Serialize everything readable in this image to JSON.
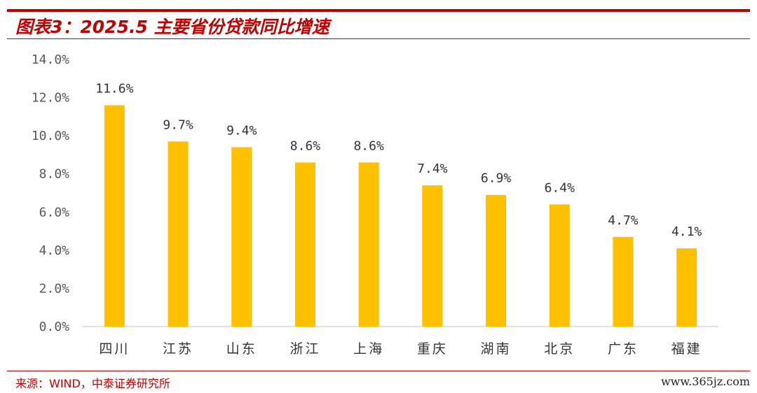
{
  "header": {
    "title": "图表3：2025.5 主要省份贷款同比增速"
  },
  "footer": {
    "source": "来源：WIND，中泰证券研究所",
    "watermark": "www.365jz.com"
  },
  "colors": {
    "accent": "#c00000",
    "bar": "#ffc000",
    "tick_text": "#595959",
    "axis_line": "#d9d9d9"
  },
  "chart_data": {
    "type": "bar",
    "title": "",
    "xlabel": "",
    "ylabel": "",
    "categories": [
      "四川",
      "江苏",
      "山东",
      "浙江",
      "上海",
      "重庆",
      "湖南",
      "北京",
      "广东",
      "福建"
    ],
    "values": [
      11.6,
      9.7,
      9.4,
      8.6,
      8.6,
      7.4,
      6.9,
      6.4,
      4.7,
      4.1
    ],
    "data_labels": [
      "11.6%",
      "9.7%",
      "9.4%",
      "8.6%",
      "8.6%",
      "7.4%",
      "6.9%",
      "6.4%",
      "4.7%",
      "4.1%"
    ],
    "yticks": [
      0,
      2,
      4,
      6,
      8,
      10,
      12,
      14
    ],
    "ytick_labels": [
      "0.0%",
      "2.0%",
      "4.0%",
      "6.0%",
      "8.0%",
      "10.0%",
      "12.0%",
      "14.0%"
    ],
    "ylim": [
      0,
      14
    ],
    "grid": false,
    "legend": "none"
  }
}
